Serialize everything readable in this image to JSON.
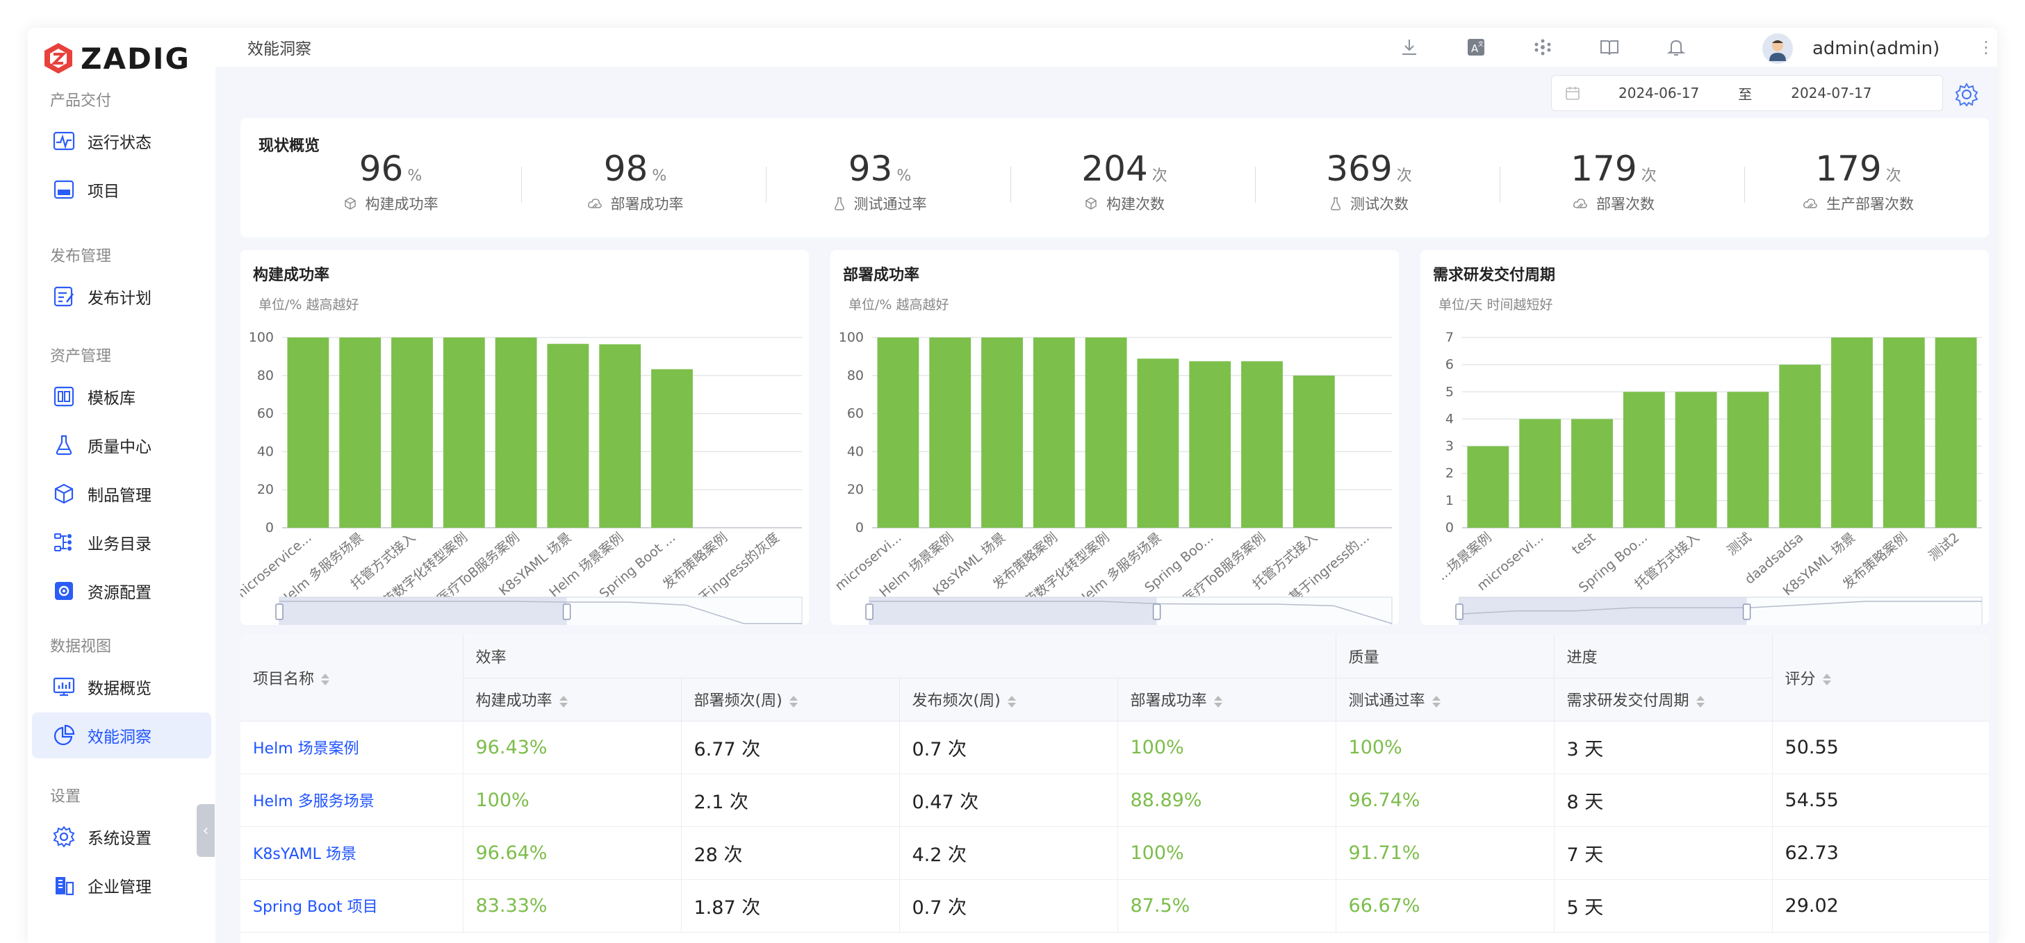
{
  "app": {
    "logo_text": "ZADIG"
  },
  "topbar": {
    "breadcrumb": "效能洞察",
    "user": "admin(admin)"
  },
  "sidebar": {
    "groups": [
      {
        "label": "产品交付",
        "items": [
          {
            "label": "运行状态",
            "icon": "pulse-icon"
          },
          {
            "label": "项目",
            "icon": "project-icon"
          }
        ]
      },
      {
        "label": "发布管理",
        "items": [
          {
            "label": "发布计划",
            "icon": "release-plan-icon"
          }
        ]
      },
      {
        "label": "资产管理",
        "items": [
          {
            "label": "模板库",
            "icon": "template-icon"
          },
          {
            "label": "质量中心",
            "icon": "flask-icon"
          },
          {
            "label": "制品管理",
            "icon": "artifact-icon"
          },
          {
            "label": "业务目录",
            "icon": "catalog-icon"
          },
          {
            "label": "资源配置",
            "icon": "resource-gear-icon"
          }
        ]
      },
      {
        "label": "数据视图",
        "items": [
          {
            "label": "数据概览",
            "icon": "monitor-chart-icon"
          },
          {
            "label": "效能洞察",
            "icon": "pie-chart-icon",
            "active": true
          }
        ]
      },
      {
        "label": "设置",
        "items": [
          {
            "label": "系统设置",
            "icon": "gear-icon"
          },
          {
            "label": "企业管理",
            "icon": "building-icon"
          }
        ]
      }
    ]
  },
  "filter": {
    "start_date": "2024-06-17",
    "separator": "至",
    "end_date": "2024-07-17"
  },
  "overview": {
    "title": "现状概览",
    "stats": [
      {
        "value": "96",
        "unit": "%",
        "label": "构建成功率",
        "icon": "cube-icon"
      },
      {
        "value": "98",
        "unit": "%",
        "label": "部署成功率",
        "icon": "cloud-icon"
      },
      {
        "value": "93",
        "unit": "%",
        "label": "测试通过率",
        "icon": "flask-icon"
      },
      {
        "value": "204",
        "unit": "次",
        "label": "构建次数",
        "icon": "cube-icon"
      },
      {
        "value": "369",
        "unit": "次",
        "label": "测试次数",
        "icon": "flask-icon"
      },
      {
        "value": "179",
        "unit": "次",
        "label": "部署次数",
        "icon": "cloud-icon"
      },
      {
        "value": "179",
        "unit": "次",
        "label": "生产部署次数",
        "icon": "cloud-icon"
      }
    ]
  },
  "chart_data": [
    {
      "type": "bar",
      "title": "构建成功率",
      "subtitle": "单位/% 越高越好",
      "categories": [
        "microservice...",
        "Helm 多服务场景",
        "托管方式接入",
        "医药数字化转型案例",
        "医疗ToB服务案例",
        "K8sYAML 场景",
        "Helm 场景案例",
        "Spring Boot ...",
        "发布策略案例",
        "基于ingress的灰度"
      ],
      "values": [
        100,
        100,
        100,
        100,
        100,
        96.64,
        96.43,
        83.33,
        0,
        0
      ],
      "ylim": [
        0,
        100
      ],
      "yticks": [
        0,
        20,
        40,
        60,
        80,
        100
      ],
      "color": "#7cc04b"
    },
    {
      "type": "bar",
      "title": "部署成功率",
      "subtitle": "单位/% 越高越好",
      "categories": [
        "microservi...",
        "Helm 场景案例",
        "K8sYAML 场景",
        "发布策略案例",
        "医药数字化转型案例",
        "Helm 多服务场景",
        "Spring Boo...",
        "医疗ToB服务案例",
        "托管方式接入",
        "基于ingress的..."
      ],
      "values": [
        100,
        100,
        100,
        100,
        100,
        88.89,
        87.5,
        87.5,
        80,
        0
      ],
      "ylim": [
        0,
        100
      ],
      "yticks": [
        0,
        20,
        40,
        60,
        80,
        100
      ],
      "color": "#7cc04b"
    },
    {
      "type": "bar",
      "title": "需求研发交付周期",
      "subtitle": "单位/天 时间越短好",
      "categories": [
        "...场景案例",
        "microservi...",
        "test",
        "Spring Boo...",
        "托管方式接入",
        "测试",
        "daadsadsa",
        "K8sYAML 场景",
        "发布策略案例",
        "测试2"
      ],
      "values": [
        3,
        4,
        4,
        5,
        5,
        5,
        6,
        7,
        7,
        7
      ],
      "ylim": [
        0,
        7
      ],
      "yticks": [
        0,
        1,
        2,
        3,
        4,
        5,
        6,
        7
      ],
      "color": "#7cc04b"
    }
  ],
  "table": {
    "headers": {
      "name": "项目名称",
      "group_efficiency": "效率",
      "group_quality": "质量",
      "group_progress": "进度",
      "score": "评分",
      "build_rate": "构建成功率",
      "deploy_freq": "部署频次(周)",
      "release_freq": "发布频次(周)",
      "deploy_rate": "部署成功率",
      "test_rate": "测试通过率",
      "lead_time": "需求研发交付周期"
    },
    "rows": [
      {
        "name": "Helm 场景案例",
        "build_rate": "96.43%",
        "deploy_freq": "6.77 次",
        "release_freq": "0.7 次",
        "deploy_rate": "100%",
        "test_rate": "100%",
        "lead_time": "3 天",
        "score": "50.55"
      },
      {
        "name": "Helm 多服务场景",
        "build_rate": "100%",
        "deploy_freq": "2.1 次",
        "release_freq": "0.47 次",
        "deploy_rate": "88.89%",
        "test_rate": "96.74%",
        "lead_time": "8 天",
        "score": "54.55"
      },
      {
        "name": "K8sYAML 场景",
        "build_rate": "96.64%",
        "deploy_freq": "28 次",
        "release_freq": "4.2 次",
        "deploy_rate": "100%",
        "test_rate": "91.71%",
        "lead_time": "7 天",
        "score": "62.73"
      },
      {
        "name": "Spring Boot 项目",
        "build_rate": "83.33%",
        "deploy_freq": "1.87 次",
        "release_freq": "0.7 次",
        "deploy_rate": "87.5%",
        "test_rate": "66.67%",
        "lead_time": "5 天",
        "score": "29.02"
      }
    ]
  }
}
